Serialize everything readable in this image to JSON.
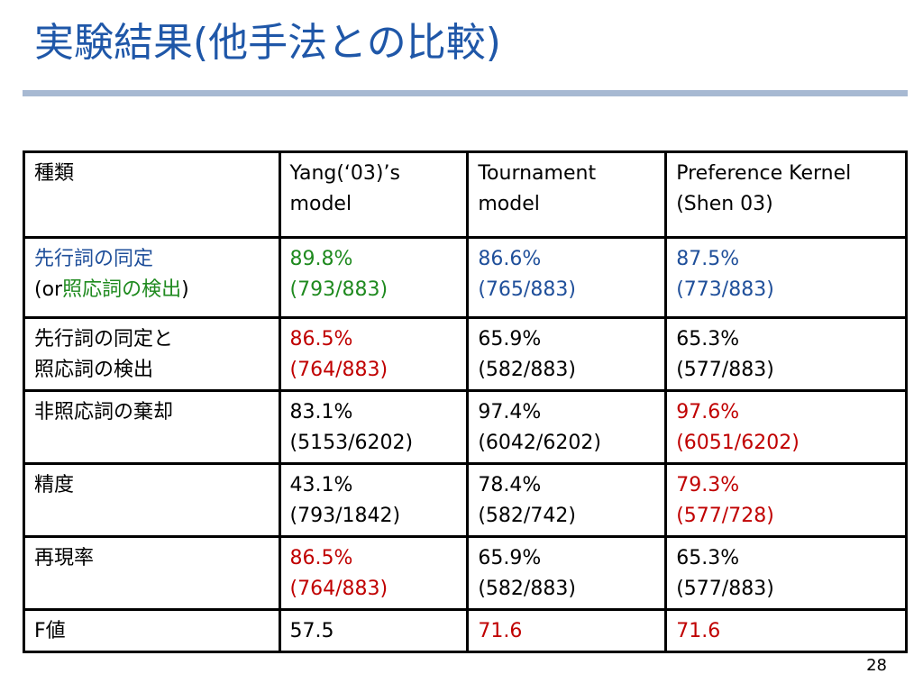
{
  "slide": {
    "title": "実験結果(他手法との比較)",
    "page_number": "28"
  },
  "table": {
    "header": {
      "c0": "種類",
      "c1": [
        "Yang(‘03)’s",
        "model"
      ],
      "c2": [
        "Tournament",
        "model"
      ],
      "c3": [
        "Preference Kernel",
        "(Shen 03)"
      ]
    },
    "rows": [
      {
        "label_line1": "先行詞の同定",
        "label_line2_prefix": "(or",
        "label_line2_green": "照応詞の検出",
        "label_line2_suffix": ")",
        "v1": [
          "89.8%",
          "(793/883)"
        ],
        "v2": [
          "86.6%",
          "(765/883)"
        ],
        "v3": [
          "87.5%",
          "(773/883)"
        ]
      },
      {
        "label": [
          "先行詞の同定と",
          "照応詞の検出"
        ],
        "v1": [
          "86.5%",
          "(764/883)"
        ],
        "v2": [
          "65.9%",
          "(582/883)"
        ],
        "v3": [
          "65.3%",
          "(577/883)"
        ]
      },
      {
        "label": [
          "非照応詞の棄却"
        ],
        "v1": [
          "83.1%",
          "(5153/6202)"
        ],
        "v2": [
          "97.4%",
          "(6042/6202)"
        ],
        "v3": [
          "97.6%",
          "(6051/6202)"
        ]
      },
      {
        "label": [
          "精度"
        ],
        "v1": [
          "43.1%",
          "(793/1842)"
        ],
        "v2": [
          "78.4%",
          "(582/742)"
        ],
        "v3": [
          "79.3%",
          "(577/728)"
        ]
      },
      {
        "label": [
          "再現率"
        ],
        "v1": [
          "86.5%",
          "(764/883)"
        ],
        "v2": [
          "65.9%",
          "(582/883)"
        ],
        "v3": [
          "65.3%",
          "(577/883)"
        ]
      },
      {
        "label": [
          "F値"
        ],
        "v1": [
          "57.5"
        ],
        "v2": [
          "71.6"
        ],
        "v3": [
          "71.6"
        ]
      }
    ]
  },
  "colors": {
    "title": "#1f57a8",
    "rule": "#a7b9d2",
    "highlight_red": "#c00000",
    "highlight_green": "#1f8a1f",
    "highlight_blue": "#1f4f9a"
  }
}
